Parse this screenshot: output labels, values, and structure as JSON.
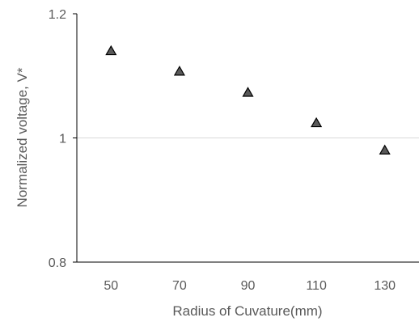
{
  "chart_data": {
    "type": "scatter",
    "title": "",
    "xlabel": "Radius of Cuvature(mm)",
    "ylabel": "Normalized voltage, V*",
    "xlim": [
      40,
      140
    ],
    "ylim": [
      0.8,
      1.2
    ],
    "x_ticks": [
      "50",
      "70",
      "90",
      "110",
      "130"
    ],
    "y_ticks": [
      "0.8",
      "1",
      "1.2"
    ],
    "gridlines_y": [
      1.0
    ],
    "legend": "none",
    "marker": "triangle",
    "marker_color": "#595959",
    "marker_edge_color": "#000000",
    "series": [
      {
        "x": [
          50,
          70,
          90,
          110,
          130
        ],
        "y": [
          1.14,
          1.107,
          1.073,
          1.024,
          0.98
        ]
      }
    ]
  }
}
